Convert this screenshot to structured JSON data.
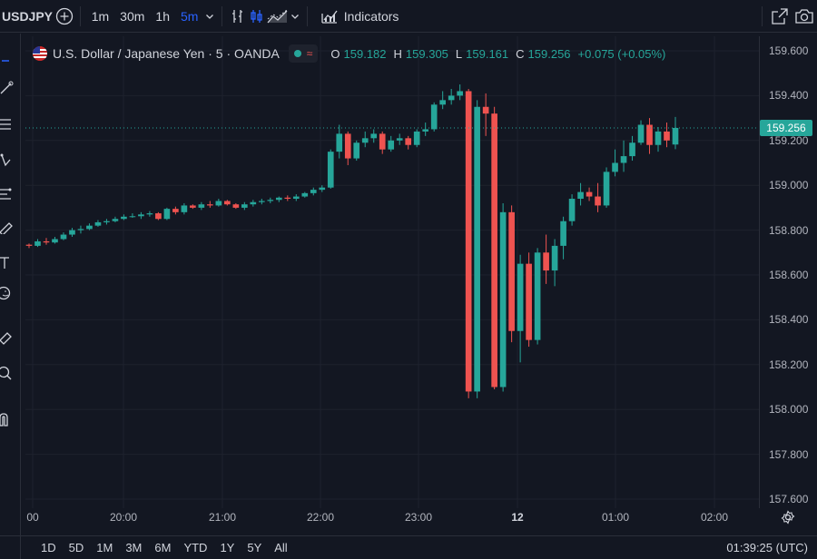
{
  "toolbar": {
    "symbol": "USDJPY",
    "intervals": [
      "1m",
      "30m",
      "1h",
      "5m"
    ],
    "active_interval": "5m",
    "indicators_label": "Indicators"
  },
  "legend": {
    "title": "U.S. Dollar / Japanese Yen · 5 · OANDA",
    "status_wave": "≈",
    "o_label": "O",
    "o_value": "159.182",
    "h_label": "H",
    "h_value": "159.305",
    "l_label": "L",
    "l_value": "159.161",
    "c_label": "C",
    "c_value": "159.256",
    "change": "+0.075 (+0.05%)"
  },
  "price_tag": "159.256",
  "time_ranges": [
    "1D",
    "5D",
    "1M",
    "3M",
    "6M",
    "YTD",
    "1Y",
    "5Y",
    "All"
  ],
  "clock": "01:39:25 (UTC)",
  "colors": {
    "up": "#26a69a",
    "down": "#ef5350",
    "accent": "#2962ff",
    "bg": "#131722"
  },
  "chart_data": {
    "type": "candlestick",
    "title": "",
    "y_ticks": [
      "159.600",
      "159.400",
      "159.200",
      "159.000",
      "158.800",
      "158.600",
      "158.400",
      "158.200",
      "158.000",
      "157.800",
      "157.600"
    ],
    "ylim": [
      157.6,
      159.6
    ],
    "x_ticks": [
      "00",
      "20:00",
      "21:00",
      "22:00",
      "23:00",
      "12",
      "01:00",
      "02:00"
    ],
    "last_price": 159.256,
    "candles": [
      [
        158.735,
        158.74,
        158.72,
        158.73
      ],
      [
        158.73,
        158.76,
        158.725,
        158.75
      ],
      [
        158.75,
        158.765,
        158.735,
        158.745
      ],
      [
        158.745,
        158.77,
        158.74,
        158.76
      ],
      [
        158.76,
        158.79,
        158.755,
        158.78
      ],
      [
        158.78,
        158.81,
        158.77,
        158.8
      ],
      [
        158.8,
        158.82,
        158.785,
        158.805
      ],
      [
        158.805,
        158.83,
        158.8,
        158.82
      ],
      [
        158.82,
        158.845,
        158.815,
        158.835
      ],
      [
        158.835,
        158.85,
        158.825,
        158.84
      ],
      [
        158.84,
        158.86,
        158.835,
        158.85
      ],
      [
        158.85,
        158.87,
        158.845,
        158.86
      ],
      [
        158.86,
        158.875,
        158.855,
        158.862
      ],
      [
        158.862,
        158.88,
        158.85,
        158.87
      ],
      [
        158.87,
        158.885,
        158.86,
        158.875
      ],
      [
        158.875,
        158.88,
        158.845,
        158.85
      ],
      [
        158.85,
        158.9,
        158.845,
        158.895
      ],
      [
        158.895,
        158.905,
        158.87,
        158.88
      ],
      [
        158.88,
        158.92,
        158.87,
        158.91
      ],
      [
        158.91,
        158.915,
        158.895,
        158.9
      ],
      [
        158.9,
        158.925,
        158.89,
        158.915
      ],
      [
        158.915,
        158.93,
        158.9,
        158.91
      ],
      [
        158.91,
        158.94,
        158.905,
        158.93
      ],
      [
        158.93,
        158.935,
        158.91,
        158.915
      ],
      [
        158.915,
        158.92,
        158.895,
        158.9
      ],
      [
        158.9,
        158.925,
        158.89,
        158.915
      ],
      [
        158.915,
        158.935,
        158.905,
        158.925
      ],
      [
        158.925,
        158.94,
        158.915,
        158.93
      ],
      [
        158.93,
        158.945,
        158.92,
        158.935
      ],
      [
        158.935,
        158.95,
        158.925,
        158.945
      ],
      [
        158.945,
        158.955,
        158.93,
        158.94
      ],
      [
        158.94,
        158.96,
        158.93,
        158.95
      ],
      [
        158.95,
        158.97,
        158.945,
        158.965
      ],
      [
        158.965,
        158.99,
        158.955,
        158.98
      ],
      [
        158.98,
        159.0,
        158.97,
        158.99
      ],
      [
        158.99,
        159.16,
        158.985,
        159.15
      ],
      [
        159.15,
        159.27,
        159.12,
        159.23
      ],
      [
        159.23,
        159.24,
        159.09,
        159.12
      ],
      [
        159.12,
        159.2,
        159.11,
        159.19
      ],
      [
        159.19,
        159.24,
        159.17,
        159.21
      ],
      [
        159.21,
        159.25,
        159.19,
        159.23
      ],
      [
        159.23,
        159.24,
        159.14,
        159.16
      ],
      [
        159.16,
        159.22,
        159.15,
        159.2
      ],
      [
        159.2,
        159.23,
        159.18,
        159.21
      ],
      [
        159.21,
        159.22,
        159.16,
        159.18
      ],
      [
        159.18,
        159.25,
        159.17,
        159.24
      ],
      [
        159.24,
        159.28,
        159.22,
        159.25
      ],
      [
        159.25,
        159.37,
        159.24,
        159.36
      ],
      [
        159.36,
        159.42,
        159.34,
        159.38
      ],
      [
        159.38,
        159.43,
        159.36,
        159.4
      ],
      [
        159.4,
        159.45,
        159.38,
        159.42
      ],
      [
        159.42,
        159.43,
        158.05,
        158.08
      ],
      [
        158.08,
        159.38,
        158.05,
        159.35
      ],
      [
        159.35,
        159.41,
        159.22,
        159.32
      ],
      [
        159.32,
        159.35,
        158.09,
        158.1
      ],
      [
        158.1,
        158.92,
        158.08,
        158.88
      ],
      [
        158.88,
        158.91,
        158.3,
        158.35
      ],
      [
        158.35,
        158.69,
        158.21,
        158.65
      ],
      [
        158.65,
        158.7,
        158.28,
        158.31
      ],
      [
        158.31,
        158.72,
        158.29,
        158.7
      ],
      [
        158.7,
        158.78,
        158.56,
        158.62
      ],
      [
        158.62,
        158.76,
        158.55,
        158.73
      ],
      [
        158.73,
        158.86,
        158.67,
        158.84
      ],
      [
        158.84,
        158.96,
        158.82,
        158.94
      ],
      [
        158.94,
        159.01,
        158.91,
        158.97
      ],
      [
        158.97,
        158.99,
        158.93,
        158.95
      ],
      [
        158.95,
        159.01,
        158.88,
        158.91
      ],
      [
        158.91,
        159.08,
        158.9,
        159.06
      ],
      [
        159.06,
        159.16,
        159.04,
        159.1
      ],
      [
        159.1,
        159.2,
        159.06,
        159.13
      ],
      [
        159.13,
        159.22,
        159.11,
        159.19
      ],
      [
        159.19,
        159.29,
        159.18,
        159.27
      ],
      [
        159.27,
        159.3,
        159.14,
        159.18
      ],
      [
        159.18,
        159.26,
        159.15,
        159.24
      ],
      [
        159.24,
        159.28,
        159.17,
        159.2
      ],
      [
        159.182,
        159.305,
        159.161,
        159.256
      ]
    ]
  }
}
